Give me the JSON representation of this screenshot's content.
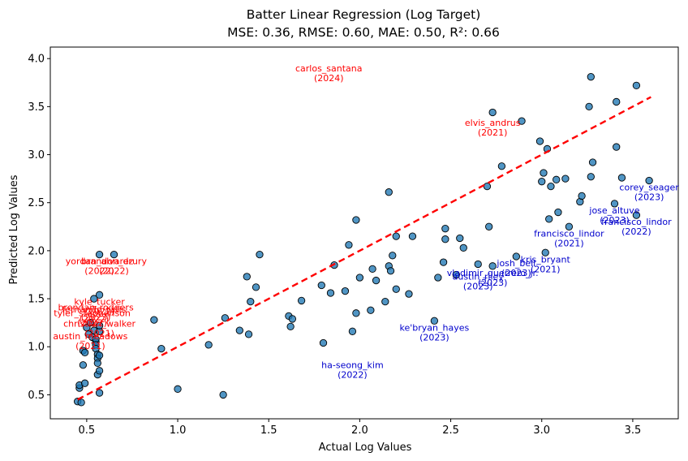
{
  "chart_data": {
    "type": "scatter",
    "title": "Batter Linear Regression (Log Target)",
    "subtitle": "MSE: 0.36, RMSE: 0.60, MAE: 0.50, R²: 0.66",
    "xlabel": "Actual Log Values",
    "ylabel": "Predicted Log Values",
    "xlim": [
      0.3,
      3.75
    ],
    "ylim": [
      0.25,
      4.12
    ],
    "xticks": [
      "0.5",
      "1.0",
      "1.5",
      "2.0",
      "2.5",
      "3.0",
      "3.5"
    ],
    "yticks": [
      "0.5",
      "1.0",
      "1.5",
      "2.0",
      "2.5",
      "3.0",
      "3.5",
      "4.0"
    ],
    "grid": false,
    "point_color": "#1f77b4",
    "fit_line_color": "#ff0000",
    "fit_line": {
      "x": [
        0.45,
        3.6
      ],
      "y": [
        0.45,
        3.6
      ],
      "style": "dashed"
    },
    "overpredicted_color": "#ff0000",
    "underpredicted_color": "#0000cc",
    "points": [
      [
        0.45,
        0.43
      ],
      [
        0.46,
        0.57
      ],
      [
        0.46,
        0.6
      ],
      [
        0.47,
        0.42
      ],
      [
        0.48,
        0.81
      ],
      [
        0.48,
        0.96
      ],
      [
        0.49,
        0.62
      ],
      [
        0.49,
        0.94
      ],
      [
        0.5,
        1.2
      ],
      [
        0.51,
        1.13
      ],
      [
        0.52,
        1.25
      ],
      [
        0.53,
        1.1
      ],
      [
        0.54,
        1.5
      ],
      [
        0.54,
        1.17
      ],
      [
        0.55,
        1.05
      ],
      [
        0.55,
        1.08
      ],
      [
        0.55,
        1.02
      ],
      [
        0.55,
        0.98
      ],
      [
        0.56,
        0.92
      ],
      [
        0.56,
        0.88
      ],
      [
        0.56,
        0.83
      ],
      [
        0.56,
        0.71
      ],
      [
        0.57,
        0.75
      ],
      [
        0.57,
        0.52
      ],
      [
        0.57,
        0.91
      ],
      [
        0.57,
        1.16
      ],
      [
        0.57,
        1.22
      ],
      [
        0.57,
        1.54
      ],
      [
        0.57,
        1.96
      ],
      [
        0.65,
        1.96
      ],
      [
        0.87,
        1.28
      ],
      [
        0.91,
        0.98
      ],
      [
        1.0,
        0.56
      ],
      [
        1.17,
        1.02
      ],
      [
        1.25,
        0.5
      ],
      [
        1.26,
        1.3
      ],
      [
        1.34,
        1.17
      ],
      [
        1.38,
        1.73
      ],
      [
        1.39,
        1.13
      ],
      [
        1.4,
        1.47
      ],
      [
        1.43,
        1.62
      ],
      [
        1.45,
        1.96
      ],
      [
        1.61,
        1.32
      ],
      [
        1.62,
        1.21
      ],
      [
        1.63,
        1.29
      ],
      [
        1.68,
        1.48
      ],
      [
        1.79,
        1.64
      ],
      [
        1.8,
        1.04
      ],
      [
        1.84,
        1.56
      ],
      [
        1.86,
        1.85
      ],
      [
        1.92,
        1.58
      ],
      [
        1.94,
        2.06
      ],
      [
        1.96,
        1.16
      ],
      [
        1.98,
        1.35
      ],
      [
        1.98,
        2.32
      ],
      [
        2.0,
        1.72
      ],
      [
        2.06,
        1.38
      ],
      [
        2.07,
        1.81
      ],
      [
        2.09,
        1.69
      ],
      [
        2.14,
        1.47
      ],
      [
        2.16,
        1.84
      ],
      [
        2.17,
        1.79
      ],
      [
        2.16,
        2.61
      ],
      [
        2.18,
        1.95
      ],
      [
        2.2,
        1.6
      ],
      [
        2.2,
        2.15
      ],
      [
        2.27,
        1.55
      ],
      [
        2.29,
        2.15
      ],
      [
        2.41,
        1.27
      ],
      [
        2.43,
        1.72
      ],
      [
        2.46,
        1.88
      ],
      [
        2.47,
        2.23
      ],
      [
        2.47,
        2.12
      ],
      [
        2.53,
        1.75
      ],
      [
        2.55,
        2.13
      ],
      [
        2.57,
        2.03
      ],
      [
        2.65,
        1.86
      ],
      [
        2.7,
        2.67
      ],
      [
        2.71,
        2.25
      ],
      [
        2.73,
        1.84
      ],
      [
        2.73,
        3.44
      ],
      [
        2.78,
        2.88
      ],
      [
        2.86,
        1.94
      ],
      [
        2.89,
        3.35
      ],
      [
        2.99,
        3.14
      ],
      [
        3.0,
        2.72
      ],
      [
        3.01,
        2.81
      ],
      [
        3.02,
        1.98
      ],
      [
        3.03,
        3.06
      ],
      [
        3.04,
        2.33
      ],
      [
        3.05,
        2.67
      ],
      [
        3.08,
        2.74
      ],
      [
        3.09,
        2.4
      ],
      [
        3.13,
        2.75
      ],
      [
        3.15,
        2.25
      ],
      [
        3.21,
        2.51
      ],
      [
        3.22,
        2.57
      ],
      [
        3.26,
        3.5
      ],
      [
        3.27,
        2.77
      ],
      [
        3.27,
        3.81
      ],
      [
        3.28,
        2.92
      ],
      [
        3.4,
        2.49
      ],
      [
        3.41,
        3.08
      ],
      [
        3.41,
        3.55
      ],
      [
        3.44,
        2.76
      ],
      [
        3.52,
        2.37
      ],
      [
        3.52,
        3.72
      ],
      [
        3.59,
        2.73
      ]
    ],
    "annotations": [
      {
        "name": "carlos_santana",
        "year": "(2024)",
        "x": 1.83,
        "y": 3.97,
        "color": "red"
      },
      {
        "name": "elvis_andrus",
        "year": "(2021)",
        "x": 2.73,
        "y": 3.4,
        "color": "red"
      },
      {
        "name": "yordan_alvarez",
        "year": "(2022)",
        "x": 0.57,
        "y": 1.96,
        "color": "red"
      },
      {
        "name": "brandon_drury",
        "year": "(2022)",
        "x": 0.65,
        "y": 1.96,
        "color": "red"
      },
      {
        "name": "kyle_tucker",
        "year": "(2022)",
        "x": 0.57,
        "y": 1.54,
        "color": "red"
      },
      {
        "name": "brendan_rodgers",
        "year": "(2023)",
        "x": 0.55,
        "y": 1.48,
        "color": "red"
      },
      {
        "name": "fernando_tatis",
        "year": "(2022)",
        "x": 0.54,
        "y": 1.46,
        "color": "red"
      },
      {
        "name": "tyler_stephenson",
        "year": "(2022)",
        "x": 0.53,
        "y": 1.42,
        "color": "red"
      },
      {
        "name": "christian_walker",
        "year": "(2021)",
        "x": 0.57,
        "y": 1.31,
        "color": "red"
      },
      {
        "name": "austin_meadows",
        "year": "(2021)",
        "x": 0.52,
        "y": 1.18,
        "color": "red"
      },
      {
        "name": "corey_seager",
        "year": "(2023)",
        "x": 3.59,
        "y": 2.73,
        "color": "blue"
      },
      {
        "name": "jose_altuve",
        "year": "(2023)",
        "x": 3.4,
        "y": 2.49,
        "color": "blue"
      },
      {
        "name": "francisco_lindor",
        "year": "(2022)",
        "x": 3.52,
        "y": 2.37,
        "color": "blue"
      },
      {
        "name": "francisco_lindor",
        "year": "(2021)",
        "x": 3.15,
        "y": 2.25,
        "color": "blue"
      },
      {
        "name": "kris_bryant",
        "year": "(2021)",
        "x": 3.02,
        "y": 1.98,
        "color": "blue"
      },
      {
        "name": "josh_bell",
        "year": "(2023)",
        "x": 2.86,
        "y": 1.94,
        "color": "blue"
      },
      {
        "name": "vladimir_guerrero_jr.",
        "year": "(2023)",
        "x": 2.73,
        "y": 1.84,
        "color": "blue"
      },
      {
        "name": "austin_riley",
        "year": "(2023)",
        "x": 2.65,
        "y": 1.8,
        "color": "blue"
      },
      {
        "name": "ke'bryan_hayes",
        "year": "(2023)",
        "x": 2.41,
        "y": 1.27,
        "color": "blue"
      },
      {
        "name": "ha-seong_kim",
        "year": "(2022)",
        "x": 1.96,
        "y": 0.88,
        "color": "blue"
      }
    ]
  }
}
